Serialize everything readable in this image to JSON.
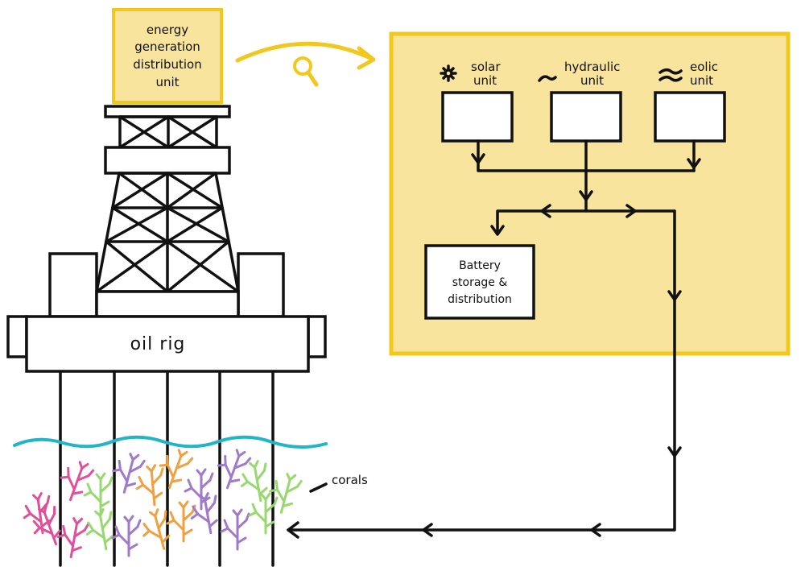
{
  "energy_unit_label": [
    "energy",
    "generation",
    "distribution",
    "unit"
  ],
  "zoom_icon": "magnifier-icon",
  "panel": {
    "fill_color": "#f8e49c",
    "border_color": "#f2c81e",
    "units": [
      {
        "icon": "sun-icon",
        "lines": [
          "solar",
          "unit"
        ]
      },
      {
        "icon": "wave-icon",
        "lines": [
          "hydraulic",
          "unit"
        ]
      },
      {
        "icon": "wind-icon",
        "lines": [
          "eolic",
          "unit"
        ]
      }
    ],
    "battery_label": [
      "Battery",
      "storage &",
      "distribution"
    ]
  },
  "rig_label": "oil rig",
  "corals_label": "corals",
  "colors": {
    "water": "#22b5c8",
    "coral_pink": "#e0509a",
    "coral_purple": "#a07ac8",
    "coral_orange": "#f0a040",
    "coral_green": "#98d870"
  }
}
